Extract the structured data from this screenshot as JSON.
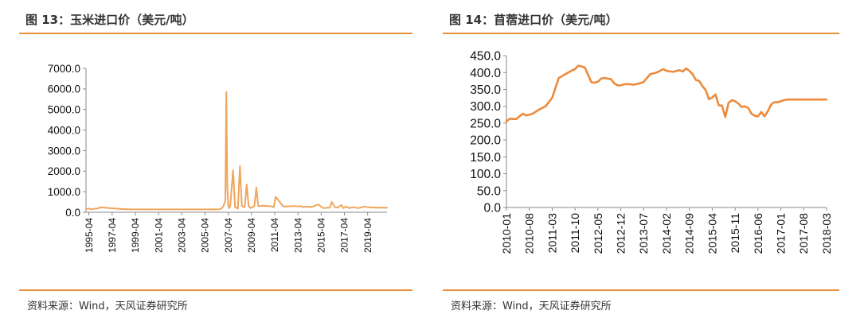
{
  "figures": [
    {
      "title": "图 13：玉米进口价（美元/吨）",
      "source": "资料来源：Wind，天风证券研究所",
      "line_color": "#f0a55a"
    },
    {
      "title": "图 14：苜蓿进口价（美元/吨）",
      "source": "资料来源：Wind，天风证券研究所",
      "line_color": "#ec8a3c"
    }
  ],
  "accent_color": "#e8913a",
  "chart_data": [
    {
      "type": "line",
      "title": "图 13：玉米进口价（美元/吨）",
      "xlabel": "",
      "ylabel": "",
      "ylim": [
        0,
        7000
      ],
      "x_range": [
        "1995-01",
        "2020-12"
      ],
      "yticks": [
        "0.0",
        "1000.0",
        "2000.0",
        "3000.0",
        "4000.0",
        "5000.0",
        "6000.0",
        "7000.0"
      ],
      "xticks": [
        "1995-04",
        "1997-04",
        "1999-04",
        "2001-04",
        "2003-04",
        "2005-04",
        "2007-04",
        "2009-04",
        "2011-04",
        "2013-04",
        "2015-04",
        "2017-04",
        "2019-04"
      ],
      "grid": false,
      "legend": "none",
      "series": [
        {
          "x": [
            "1995-01",
            "1995-04",
            "1995-06",
            "1996-01",
            "1996-04",
            "1997-01",
            "1998-01",
            "1998-06",
            "1999-01",
            "2006-06",
            "2006-09",
            "2006-11",
            "2007-01",
            "2007-02",
            "2007-03",
            "2007-04",
            "2007-05",
            "2007-06",
            "2007-09",
            "2007-11",
            "2008-01",
            "2008-02",
            "2008-04",
            "2008-06",
            "2008-09",
            "2008-11",
            "2009-01",
            "2009-03",
            "2009-05",
            "2009-07",
            "2009-09",
            "2009-11",
            "2010-01",
            "2010-04",
            "2010-06",
            "2010-09",
            "2010-11",
            "2011-01",
            "2011-03",
            "2011-05",
            "2012-01",
            "2013-01",
            "2013-04",
            "2013-07",
            "2013-09",
            "2014-01",
            "2014-06",
            "2015-01",
            "2015-06",
            "2016-01",
            "2016-03",
            "2016-06",
            "2016-09",
            "2017-01",
            "2017-03",
            "2017-06",
            "2017-09",
            "2018-01",
            "2018-06",
            "2019-01",
            "2019-06",
            "2020-01",
            "2020-06",
            "2020-12"
          ],
          "values": [
            160,
            180,
            150,
            180,
            240,
            200,
            160,
            150,
            140,
            140,
            180,
            300,
            560,
            5850,
            1200,
            300,
            200,
            300,
            2050,
            250,
            200,
            180,
            2250,
            300,
            250,
            1350,
            300,
            200,
            250,
            300,
            1200,
            300,
            300,
            320,
            310,
            300,
            300,
            280,
            250,
            750,
            280,
            300,
            280,
            300,
            250,
            280,
            250,
            380,
            200,
            230,
            500,
            250,
            230,
            350,
            200,
            280,
            200,
            250,
            200,
            280,
            240,
            220,
            230,
            220
          ]
        }
      ]
    },
    {
      "type": "line",
      "title": "图 14：苜蓿进口价（美元/吨）",
      "xlabel": "",
      "ylabel": "",
      "ylim": [
        0,
        450
      ],
      "x_range": [
        "2010-01",
        "2018-03"
      ],
      "yticks": [
        "0.0",
        "50.0",
        "100.0",
        "150.0",
        "200.0",
        "250.0",
        "300.0",
        "350.0",
        "400.0",
        "450.0"
      ],
      "xticks": [
        "2010-01",
        "2010-08",
        "2011-03",
        "2011-10",
        "2012-05",
        "2012-12",
        "2013-07",
        "2014-02",
        "2014-09",
        "2015-04",
        "2015-11",
        "2016-06",
        "2017-01",
        "2017-08",
        "2018-03"
      ],
      "grid": false,
      "legend": "none",
      "series": [
        {
          "x": [
            "2010-01",
            "2010-02",
            "2010-04",
            "2010-06",
            "2010-07",
            "2010-08",
            "2010-09",
            "2010-11",
            "2011-01",
            "2011-03",
            "2011-05",
            "2011-07",
            "2011-08",
            "2011-09",
            "2011-10",
            "2011-11",
            "2011-12",
            "2012-01",
            "2012-02",
            "2012-03",
            "2012-04",
            "2012-05",
            "2012-06",
            "2012-07",
            "2012-08",
            "2012-09",
            "2012-10",
            "2012-11",
            "2012-12",
            "2013-01",
            "2013-02",
            "2013-03",
            "2013-04",
            "2013-05",
            "2013-07",
            "2013-09",
            "2013-11",
            "2014-01",
            "2014-02",
            "2014-04",
            "2014-06",
            "2014-07",
            "2014-08",
            "2014-09",
            "2014-10",
            "2014-11",
            "2014-12",
            "2015-01",
            "2015-02",
            "2015-03",
            "2015-04",
            "2015-05",
            "2015-06",
            "2015-07",
            "2015-08",
            "2015-09",
            "2015-10",
            "2015-11",
            "2015-12",
            "2016-01",
            "2016-02",
            "2016-03",
            "2016-04",
            "2016-05",
            "2016-06",
            "2016-07",
            "2016-08",
            "2016-09",
            "2016-10",
            "2016-11",
            "2016-12",
            "2017-01",
            "2017-02",
            "2017-03",
            "2017-04",
            "2017-05",
            "2017-06",
            "2017-07",
            "2017-08",
            "2017-09",
            "2017-10",
            "2017-11",
            "2017-12",
            "2018-01",
            "2018-02",
            "2018-03"
          ],
          "values": [
            255,
            263,
            262,
            278,
            273,
            275,
            278,
            290,
            300,
            325,
            383,
            395,
            400,
            406,
            410,
            420,
            418,
            415,
            393,
            371,
            370,
            373,
            382,
            384,
            382,
            380,
            368,
            362,
            362,
            365,
            366,
            365,
            364,
            366,
            372,
            395,
            400,
            410,
            405,
            402,
            407,
            403,
            412,
            405,
            395,
            378,
            375,
            360,
            348,
            321,
            326,
            335,
            303,
            302,
            268,
            310,
            318,
            315,
            308,
            298,
            300,
            295,
            278,
            272,
            270,
            283,
            270,
            285,
            305,
            312,
            312,
            315,
            318,
            320,
            320,
            320,
            320,
            320,
            320,
            320,
            320,
            320,
            320,
            320,
            320,
            320
          ]
        }
      ]
    }
  ]
}
